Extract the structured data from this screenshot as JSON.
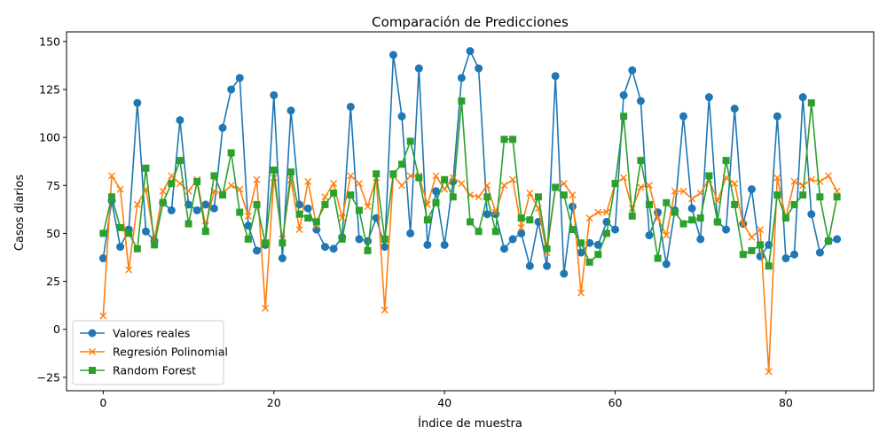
{
  "chart_data": {
    "type": "line",
    "title": "Comparación de Predicciones",
    "xlabel": "Índice de muestra",
    "ylabel": "Casos diarios",
    "xlim": [
      -4.3,
      90.3
    ],
    "ylim": [
      -32,
      155
    ],
    "xticks": [
      0,
      20,
      40,
      60,
      80
    ],
    "yticks": [
      -25,
      0,
      25,
      50,
      75,
      100,
      125,
      150
    ],
    "grid": false,
    "legend_position": "bottom-left",
    "series": [
      {
        "name": "Valores reales",
        "color": "#1f77b4",
        "marker": "circle",
        "values": [
          37,
          67,
          43,
          52,
          118,
          51,
          46,
          66,
          62,
          109,
          65,
          62,
          65,
          63,
          105,
          125,
          131,
          54,
          41,
          44,
          122,
          37,
          114,
          65,
          63,
          52,
          43,
          42,
          48,
          116,
          47,
          46,
          58,
          43,
          143,
          111,
          50,
          136,
          44,
          72,
          44,
          77,
          131,
          145,
          136,
          60,
          60,
          42,
          47,
          50,
          33,
          56,
          33,
          132,
          29,
          64,
          40,
          45,
          44,
          56,
          52,
          122,
          135,
          119,
          49,
          61,
          34,
          62,
          111,
          63,
          47,
          121,
          56,
          52,
          115,
          55,
          73,
          38,
          44,
          111,
          37,
          39,
          121,
          60,
          40,
          46,
          47
        ]
      },
      {
        "name": "Regresión Polinomial",
        "color": "#ff7f0e",
        "marker": "x",
        "values": [
          7,
          80,
          73,
          31,
          65,
          73,
          47,
          72,
          80,
          76,
          72,
          78,
          54,
          72,
          71,
          75,
          73,
          59,
          78,
          11,
          79,
          47,
          78,
          52,
          77,
          54,
          69,
          76,
          58,
          80,
          76,
          64,
          79,
          10,
          80,
          75,
          80,
          80,
          65,
          80,
          73,
          79,
          76,
          70,
          69,
          75,
          61,
          75,
          78,
          53,
          71,
          63,
          40,
          74,
          76,
          70,
          19,
          58,
          61,
          61,
          76,
          79,
          63,
          74,
          75,
          58,
          49,
          72,
          72,
          68,
          71,
          78,
          67,
          79,
          76,
          55,
          48,
          52,
          -22,
          79,
          58,
          77,
          75,
          78,
          77,
          80,
          72
        ]
      },
      {
        "name": "Random Forest",
        "color": "#2ca02c",
        "marker": "square",
        "values": [
          50,
          69,
          53,
          50,
          42,
          84,
          44,
          66,
          76,
          88,
          55,
          77,
          51,
          80,
          70,
          92,
          61,
          47,
          65,
          45,
          83,
          45,
          82,
          60,
          58,
          56,
          65,
          71,
          47,
          70,
          62,
          41,
          81,
          47,
          81,
          86,
          98,
          79,
          57,
          66,
          78,
          69,
          119,
          56,
          51,
          69,
          51,
          99,
          99,
          58,
          57,
          69,
          42,
          74,
          70,
          52,
          45,
          35,
          39,
          50,
          76,
          111,
          59,
          88,
          65,
          37,
          66,
          61,
          55,
          57,
          58,
          80,
          56,
          88,
          65,
          39,
          41,
          44,
          33,
          70,
          58,
          65,
          70,
          118,
          69,
          46,
          69
        ]
      }
    ]
  }
}
